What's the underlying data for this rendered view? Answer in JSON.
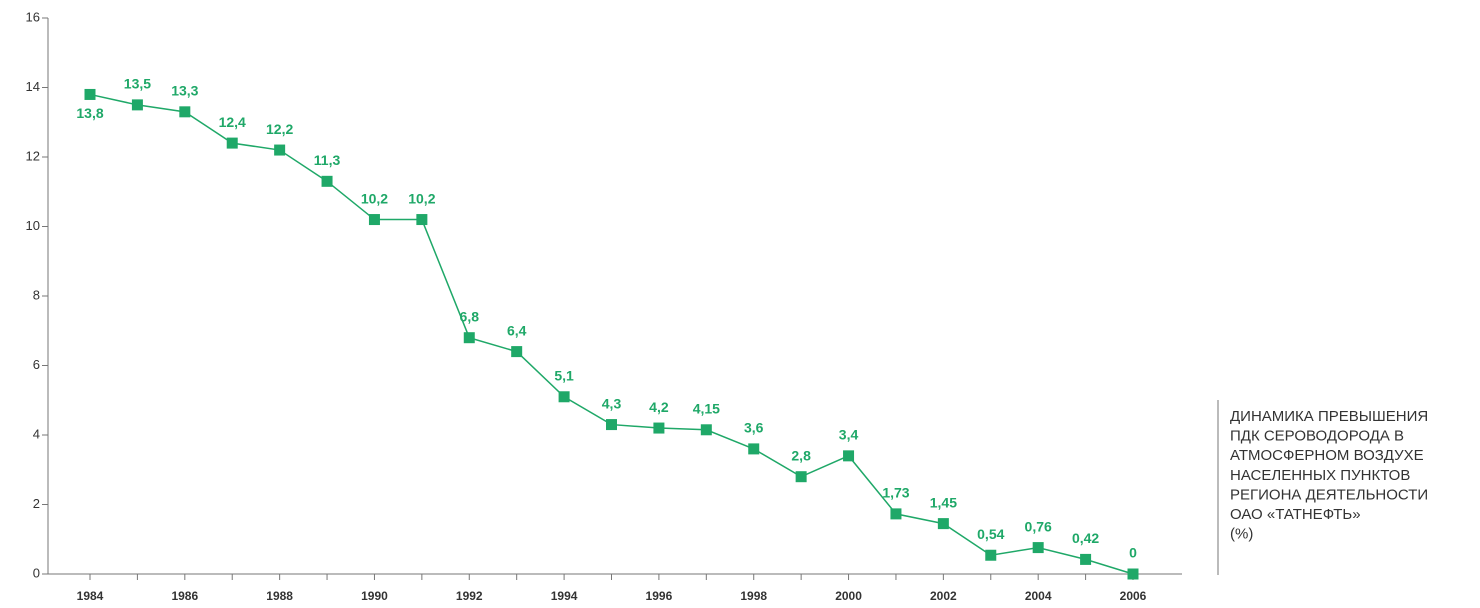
{
  "chart_data": {
    "type": "line",
    "title": [
      "ДИНАМИКА ПРЕВЫШЕНИЯ",
      "ПДК СЕРОВОДОРОДА В",
      "АТМОСФЕРНОМ ВОЗДУХЕ",
      "НАСЕЛЕННЫХ ПУНКТОВ",
      "РЕГИОНА ДЕЯТЕЛЬНОСТИ",
      "ОАО «ТАТНЕФТЬ»"
    ],
    "y_label": "(%)",
    "categories": [
      "1984",
      null,
      "1986",
      null,
      "1988",
      null,
      "1990",
      null,
      "1992",
      null,
      "1994",
      null,
      "1996",
      null,
      "1998",
      null,
      "2000",
      null,
      "2002",
      null,
      "2004",
      null,
      "2006"
    ],
    "values": [
      13.8,
      13.5,
      13.3,
      12.4,
      12.2,
      11.3,
      10.2,
      10.2,
      6.8,
      6.4,
      5.1,
      4.3,
      4.2,
      4.15,
      3.6,
      2.8,
      3.4,
      1.73,
      1.45,
      0.54,
      0.76,
      0.42,
      0
    ],
    "value_labels": [
      "13,8",
      "13,5",
      "13,3",
      "12,4",
      "12,2",
      "11,3",
      "10,2",
      "10,2",
      "6,8",
      "6,4",
      "5,1",
      "4,3",
      "4,2",
      "4,15",
      "3,6",
      "2,8",
      "3,4",
      "1,73",
      "1,45",
      "0,54",
      "0,76",
      "0,42",
      "0"
    ],
    "color": "#1fa868",
    "ylim": [
      0,
      16
    ],
    "yticks": [
      0,
      2,
      4,
      6,
      8,
      10,
      12,
      14,
      16
    ]
  }
}
